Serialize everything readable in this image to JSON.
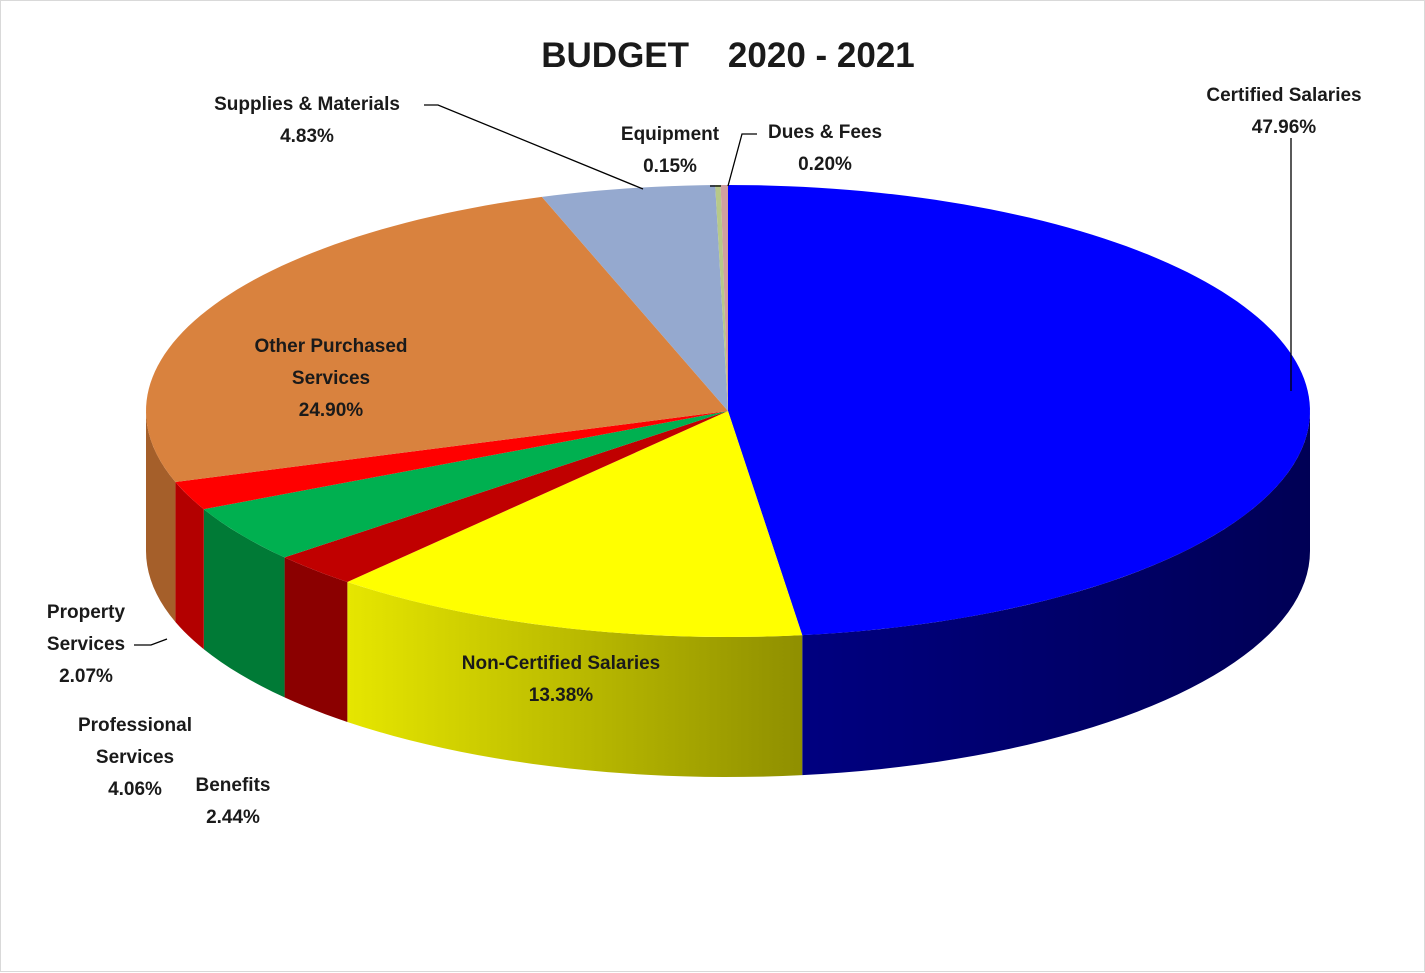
{
  "chart_data": {
    "type": "pie",
    "title": "BUDGET    2020 - 2021",
    "unit": "%",
    "slices": [
      {
        "label": "Certified Salaries",
        "value": 47.96,
        "display": "47.96%",
        "color": "#0000ff",
        "side_color": "#000066"
      },
      {
        "label": "Non-Certified Salaries",
        "value": 13.38,
        "display": "13.38%",
        "color": "#ffff00",
        "side_color": "#b8b800"
      },
      {
        "label": "Benefits",
        "value": 2.44,
        "display": "2.44%",
        "color": "#c00000",
        "side_color": "#8b0000"
      },
      {
        "label": "Professional Services",
        "value": 4.06,
        "display": "4.06%",
        "color": "#00b050",
        "side_color": "#007a36"
      },
      {
        "label": "Property Services",
        "value": 2.07,
        "display": "2.07%",
        "color": "#ff0000",
        "side_color": "#b30000"
      },
      {
        "label": "Other Purchased Services",
        "value": 24.9,
        "display": "24.90%",
        "color": "#d9823e",
        "side_color": "#a55f2a"
      },
      {
        "label": "Supplies & Materials",
        "value": 4.83,
        "display": "4.83%",
        "color": "#95a9cf",
        "side_color": "#6d7fa3"
      },
      {
        "label": "Equipment",
        "value": 0.15,
        "display": "0.15%",
        "color": "#b7c88a",
        "side_color": "#8a9a63"
      },
      {
        "label": "Dues & Fees",
        "value": 0.2,
        "display": "0.20%",
        "color": "#d0a0a0",
        "side_color": "#a07878"
      }
    ],
    "labels": {
      "certified_salaries": [
        "Certified Salaries",
        "47.96%"
      ],
      "non_certified_salaries": [
        "Non-Certified Salaries",
        "13.38%"
      ],
      "benefits": [
        "Benefits",
        "2.44%"
      ],
      "professional_services": [
        "Professional",
        "Services",
        "4.06%"
      ],
      "property_services": [
        "Property",
        "Services",
        "2.07%"
      ],
      "other_purchased_services": [
        "Other Purchased",
        "Services",
        "24.90%"
      ],
      "supplies_materials": [
        "Supplies & Materials",
        "4.83%"
      ],
      "equipment": [
        "Equipment",
        "0.15%"
      ],
      "dues_fees": [
        "Dues & Fees",
        "0.20%"
      ]
    },
    "style": "3d-exploded-pie",
    "legend": "none"
  }
}
